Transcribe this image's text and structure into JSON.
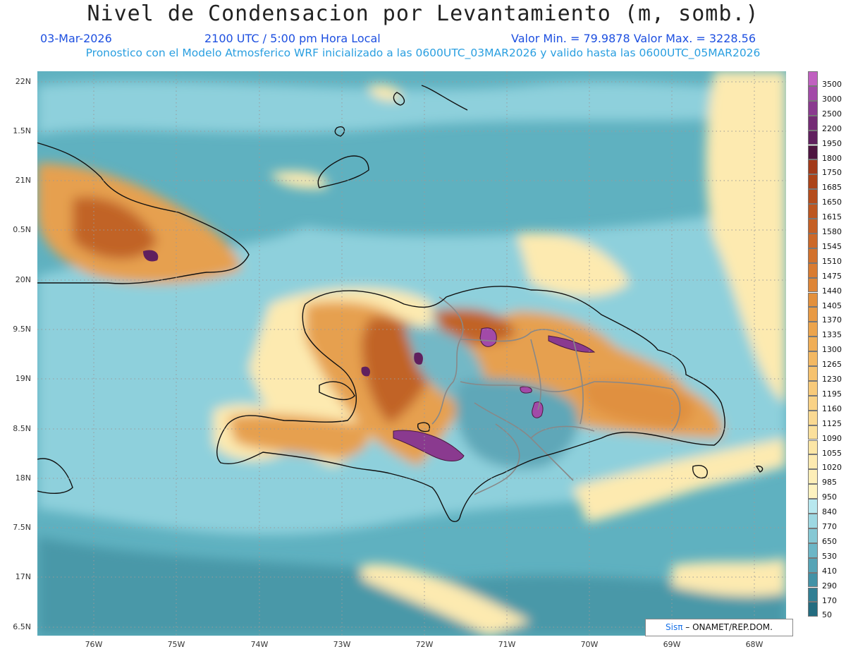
{
  "header": {
    "title": "Nivel de Condensacion por Levantamiento (m, somb.)",
    "date": "03-Mar-2026",
    "time": "2100 UTC / 5:00 pm Hora Local",
    "min_max": "Valor Min. = 79.9878   Valor Max. = 3228.56",
    "forecast_note": "Pronostico con el Modelo Atmosferico WRF inicializado a las 0600UTC_03MAR2026 y valido hasta las  0600UTC_05MAR2026"
  },
  "axes": {
    "lat_labels": [
      "22N",
      "1.5N",
      "21N",
      "0.5N",
      "20N",
      "9.5N",
      "19N",
      "8.5N",
      "18N",
      "7.5N",
      "17N",
      "6.5N"
    ],
    "lon_labels": [
      "76W",
      "75W",
      "74W",
      "73W",
      "72W",
      "71W",
      "70W",
      "69W",
      "68W"
    ]
  },
  "legend": {
    "labels": [
      "3500",
      "3000",
      "2500",
      "2200",
      "1950",
      "1800",
      "1750",
      "1685",
      "1650",
      "1615",
      "1580",
      "1545",
      "1510",
      "1475",
      "1440",
      "1405",
      "1370",
      "1335",
      "1300",
      "1265",
      "1230",
      "1195",
      "1160",
      "1125",
      "1090",
      "1055",
      "1020",
      "985",
      "950",
      "840",
      "770",
      "650",
      "530",
      "410",
      "290",
      "170",
      "50"
    ],
    "colors": [
      "#c060c0",
      "#a24aa8",
      "#8a3a8f",
      "#742c75",
      "#60205e",
      "#4e1540",
      "#a23a1a",
      "#ac4318",
      "#b54c1c",
      "#bd5620",
      "#c55f24",
      "#cc6828",
      "#d2712c",
      "#d97b30",
      "#de8536",
      "#e3903c",
      "#e89a44",
      "#eca44c",
      "#f0ae56",
      "#f3b862",
      "#f6c26e",
      "#f8ca7a",
      "#f9d286",
      "#fad992",
      "#fbe09c",
      "#fce6a6",
      "#fdeab0",
      "#fdeeb8",
      "#fef2c0",
      "#b8e8ef",
      "#9ed8e2",
      "#86c8d4",
      "#6cb6c6",
      "#56a4b6",
      "#4292a6",
      "#317f94",
      "#236c80"
    ]
  },
  "credit": {
    "brand": "Sisπ",
    "agency": "– ONAMET/REP.DOM."
  }
}
